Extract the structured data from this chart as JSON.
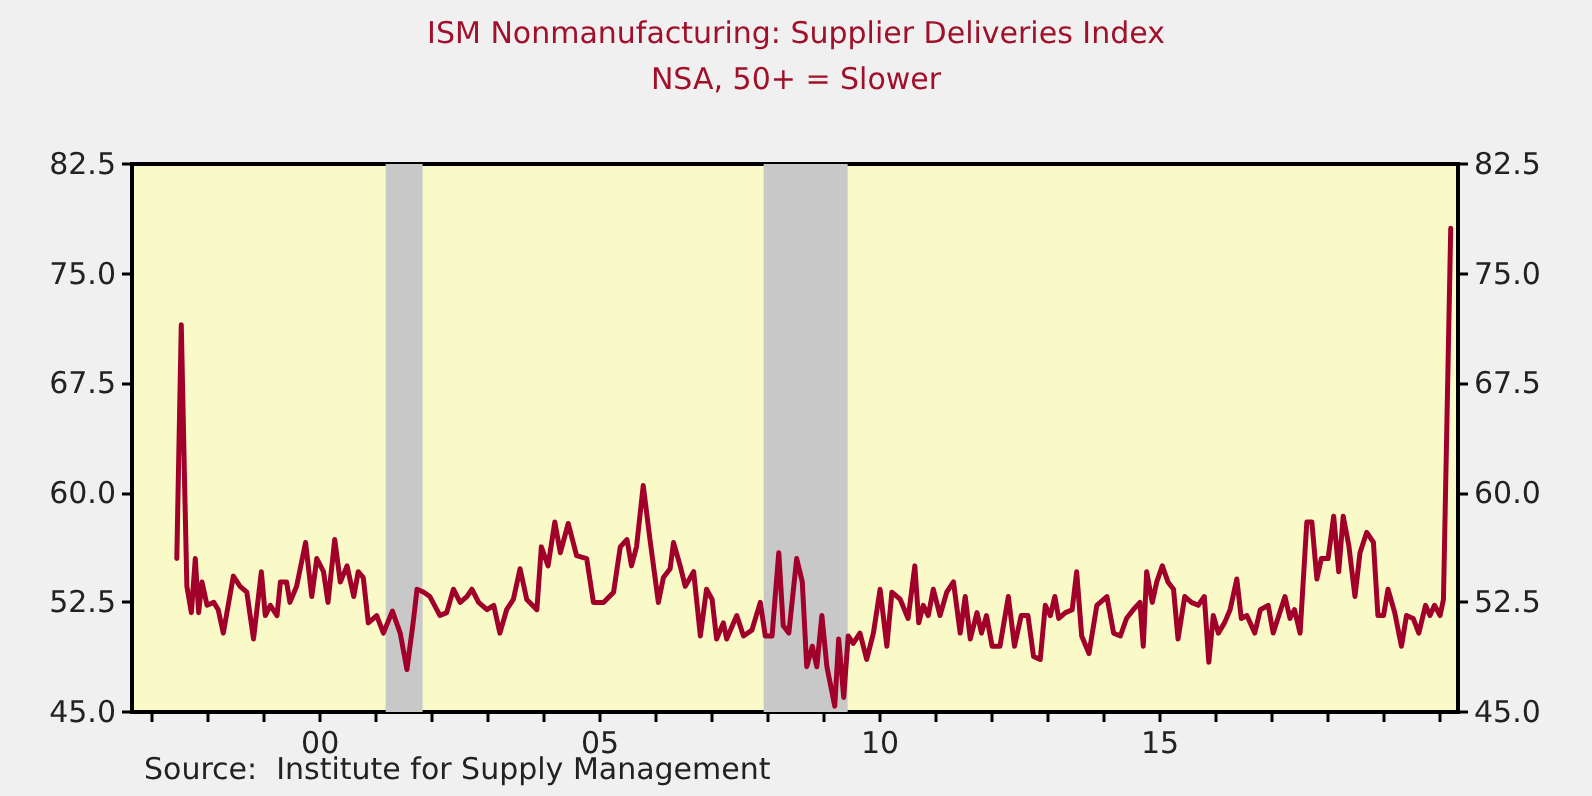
{
  "chart_data": {
    "type": "line",
    "title": "ISM Nonmanufacturing: Supplier Deliveries Index",
    "subtitle": "NSA, 50+ = Slower",
    "annotations": [
      "Source:  Institute for Supply Management"
    ],
    "x": [
      1997.44,
      1997.52,
      1997.58,
      1997.62,
      1997.7,
      1997.77,
      1997.83,
      1997.89,
      1997.98,
      1998.1,
      1998.18,
      1998.27,
      1998.45,
      1998.57,
      1998.69,
      1998.81,
      1998.95,
      1999.02,
      1999.11,
      1999.23,
      1999.29,
      1999.4,
      1999.46,
      1999.58,
      1999.74,
      1999.85,
      1999.94,
      2000.06,
      2000.14,
      2000.26,
      2000.36,
      2000.48,
      2000.6,
      2000.68,
      2000.77,
      2000.86,
      2001.01,
      2001.13,
      2001.29,
      2001.43,
      2001.55,
      2001.67,
      2001.73,
      2001.85,
      2001.96,
      2002.14,
      2002.26,
      2002.38,
      2002.5,
      2002.62,
      2002.71,
      2002.83,
      2002.98,
      2003.1,
      2003.21,
      2003.33,
      2003.45,
      2003.57,
      2003.69,
      2003.87,
      2003.95,
      2004.07,
      2004.19,
      2004.29,
      2004.43,
      2004.58,
      2004.76,
      2004.88,
      2005.06,
      2005.24,
      2005.36,
      2005.48,
      2005.56,
      2005.65,
      2005.77,
      2005.89,
      2006.04,
      2006.13,
      2006.25,
      2006.31,
      2006.43,
      2006.52,
      2006.67,
      2006.79,
      2006.9,
      2007.0,
      2007.08,
      2007.2,
      2007.26,
      2007.44,
      2007.56,
      2007.71,
      2007.86,
      2007.95,
      2008.07,
      2008.19,
      2008.27,
      2008.37,
      2008.51,
      2008.61,
      2008.69,
      2008.79,
      2008.87,
      2008.96,
      2009.05,
      2009.19,
      2009.26,
      2009.35,
      2009.43,
      2009.52,
      2009.64,
      2009.76,
      2009.88,
      2010.0,
      2010.12,
      2010.21,
      2010.36,
      2010.5,
      2010.62,
      2010.69,
      2010.77,
      2010.86,
      2010.95,
      2011.07,
      2011.19,
      2011.31,
      2011.43,
      2011.52,
      2011.61,
      2011.73,
      2011.81,
      2011.9,
      2012.0,
      2012.14,
      2012.29,
      2012.4,
      2012.52,
      2012.64,
      2012.74,
      2012.86,
      2012.95,
      2013.04,
      2013.12,
      2013.19,
      2013.31,
      2013.43,
      2013.51,
      2013.6,
      2013.73,
      2013.87,
      2014.05,
      2014.17,
      2014.29,
      2014.4,
      2014.52,
      2014.64,
      2014.7,
      2014.76,
      2014.86,
      2014.94,
      2015.04,
      2015.14,
      2015.24,
      2015.32,
      2015.44,
      2015.56,
      2015.68,
      2015.79,
      2015.87,
      2015.95,
      2016.04,
      2016.15,
      2016.25,
      2016.37,
      2016.45,
      2016.55,
      2016.69,
      2016.79,
      2016.93,
      2017.02,
      2017.12,
      2017.23,
      2017.32,
      2017.4,
      2017.5,
      2017.62,
      2017.71,
      2017.8,
      2017.88,
      2018.0,
      2018.1,
      2018.19,
      2018.27,
      2018.37,
      2018.48,
      2018.57,
      2018.69,
      2018.81,
      2018.89,
      2018.99,
      2019.07,
      2019.19,
      2019.31,
      2019.4,
      2019.52,
      2019.62,
      2019.74,
      2019.82,
      2019.9,
      2020.0,
      2020.06,
      2020.19
    ],
    "series": [
      {
        "color": "#a0002a",
        "values": [
          55.5,
          71.5,
          60.5,
          53.6,
          51.8,
          55.5,
          51.8,
          53.9,
          52.3,
          52.5,
          52.0,
          50.4,
          54.3,
          53.6,
          53.2,
          50.0,
          54.6,
          51.6,
          52.3,
          51.6,
          53.9,
          53.9,
          52.5,
          53.6,
          56.6,
          52.9,
          55.5,
          54.6,
          52.5,
          56.8,
          53.9,
          55.0,
          52.9,
          54.6,
          54.2,
          51.1,
          51.6,
          50.4,
          51.9,
          50.4,
          47.9,
          51.4,
          53.4,
          53.2,
          52.9,
          51.6,
          51.8,
          53.4,
          52.5,
          52.9,
          53.4,
          52.5,
          52.0,
          52.3,
          50.4,
          52.0,
          52.7,
          54.8,
          52.7,
          52.0,
          56.3,
          55.0,
          58.0,
          55.9,
          57.9,
          55.7,
          55.5,
          52.5,
          52.5,
          53.2,
          56.3,
          56.8,
          55.0,
          56.3,
          60.5,
          56.8,
          52.5,
          54.2,
          54.8,
          56.6,
          55.0,
          53.6,
          54.6,
          50.2,
          53.4,
          52.7,
          50.0,
          51.1,
          50.0,
          51.6,
          50.2,
          50.6,
          52.5,
          50.2,
          50.2,
          55.9,
          50.9,
          50.4,
          55.5,
          53.9,
          48.1,
          49.5,
          48.1,
          51.6,
          48.1,
          45.4,
          50.0,
          46.0,
          50.2,
          49.7,
          50.4,
          48.6,
          50.4,
          53.4,
          49.5,
          53.2,
          52.7,
          51.4,
          55.0,
          51.1,
          52.3,
          51.6,
          53.4,
          51.6,
          53.2,
          53.9,
          50.4,
          52.9,
          50.0,
          51.8,
          50.4,
          51.6,
          49.5,
          49.5,
          52.9,
          49.5,
          51.6,
          51.6,
          48.8,
          48.6,
          52.3,
          51.6,
          52.9,
          51.4,
          51.8,
          52.0,
          54.6,
          50.2,
          49.0,
          52.3,
          52.9,
          50.4,
          50.2,
          51.4,
          52.0,
          52.5,
          49.5,
          54.6,
          52.5,
          53.9,
          55.0,
          53.9,
          53.4,
          50.0,
          52.9,
          52.5,
          52.3,
          52.9,
          48.4,
          51.6,
          50.4,
          51.1,
          52.0,
          54.1,
          51.4,
          51.6,
          50.4,
          52.0,
          52.3,
          50.4,
          51.6,
          52.9,
          51.4,
          52.0,
          50.4,
          58.0,
          58.0,
          54.1,
          55.5,
          55.5,
          58.4,
          54.6,
          58.4,
          56.4,
          52.9,
          55.9,
          57.3,
          56.6,
          51.6,
          51.6,
          53.4,
          51.8,
          49.5,
          51.6,
          51.4,
          50.4,
          52.3,
          51.6,
          52.3,
          51.6,
          52.7,
          78.1
        ]
      }
    ],
    "xlim": [
      1996.64,
      2020.32
    ],
    "xticks": [
      {
        "value": 1997,
        "label": null
      },
      {
        "value": 1998,
        "label": null
      },
      {
        "value": 1999,
        "label": null
      },
      {
        "value": 2000,
        "label": "00"
      },
      {
        "value": 2001,
        "label": null
      },
      {
        "value": 2002,
        "label": null
      },
      {
        "value": 2003,
        "label": null
      },
      {
        "value": 2004,
        "label": null
      },
      {
        "value": 2005,
        "label": "05"
      },
      {
        "value": 2006,
        "label": null
      },
      {
        "value": 2007,
        "label": null
      },
      {
        "value": 2008,
        "label": null
      },
      {
        "value": 2009,
        "label": null
      },
      {
        "value": 2010,
        "label": "10"
      },
      {
        "value": 2011,
        "label": null
      },
      {
        "value": 2012,
        "label": null
      },
      {
        "value": 2013,
        "label": null
      },
      {
        "value": 2014,
        "label": null
      },
      {
        "value": 2015,
        "label": "15"
      },
      {
        "value": 2016,
        "label": null
      },
      {
        "value": 2017,
        "label": null
      },
      {
        "value": 2018,
        "label": null
      },
      {
        "value": 2019,
        "label": null
      },
      {
        "value": 2020,
        "label": null
      }
    ],
    "ylim": [
      45,
      82.5
    ],
    "yticks": [
      {
        "value": 45,
        "label": "45.0"
      },
      {
        "value": 52.5,
        "label": "52.5"
      },
      {
        "value": 60,
        "label": "60.0"
      },
      {
        "value": 67.5,
        "label": "67.5"
      },
      {
        "value": 75,
        "label": "75.0"
      },
      {
        "value": 82.5,
        "label": "82.5"
      }
    ],
    "y2lim": [
      45,
      82.5
    ],
    "y2ticks": [
      {
        "value": 45,
        "label": "45.0"
      },
      {
        "value": 52.5,
        "label": "52.5"
      },
      {
        "value": 60,
        "label": "60.0"
      },
      {
        "value": 67.5,
        "label": "67.5"
      },
      {
        "value": 75,
        "label": "75.0"
      },
      {
        "value": 82.5,
        "label": "82.5"
      }
    ],
    "bands": [
      {
        "axis": "x",
        "from": 2001.17,
        "to": 2001.83,
        "color": "#c8c8c8"
      },
      {
        "axis": "x",
        "from": 2007.92,
        "to": 2009.42,
        "color": "#c8c8c8"
      }
    ],
    "grid": false,
    "marker": "none",
    "line_style": "solid"
  }
}
